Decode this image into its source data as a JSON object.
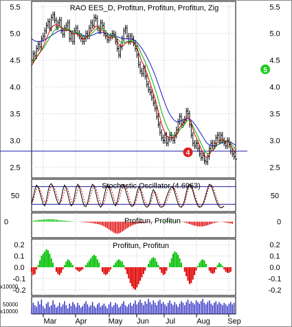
{
  "chart_data": {
    "type": "line",
    "panels": {
      "price": {
        "title": "RAO EES_D, Profitun, Profitun, Profitun, Zig",
        "ylim": [
          2.3,
          5.6
        ],
        "yticks": [
          "5.5",
          "5.0",
          "4.5",
          "4.0",
          "3.5",
          "3.0",
          "2.5"
        ],
        "hline": 2.8,
        "markers": [
          {
            "label": "4",
            "x": 95,
            "y": 2.78,
            "color": "#dd2222"
          },
          {
            "label": "5",
            "x": 142,
            "y": 4.33,
            "color": "#22cc22"
          }
        ],
        "close": [
          4.5,
          4.62,
          4.58,
          4.72,
          4.8,
          4.75,
          4.9,
          4.95,
          5.05,
          5.15,
          5.22,
          5.1,
          5.3,
          5.35,
          5.25,
          5.12,
          5.2,
          5.25,
          5.05,
          4.98,
          5.1,
          5.15,
          5.2,
          4.9,
          5.0,
          4.85,
          5.05,
          5.1,
          5.0,
          4.95,
          4.9,
          4.85,
          4.9,
          5.0,
          4.95,
          5.1,
          5.2,
          5.15,
          5.3,
          5.28,
          5.1,
          5.05,
          5.2,
          5.15,
          5.0,
          4.95,
          4.88,
          4.92,
          4.95,
          5.0,
          4.98,
          4.85,
          4.72,
          4.6,
          4.75,
          4.9,
          5.05,
          5.1,
          4.95,
          4.85,
          4.95,
          4.9,
          4.82,
          4.72,
          4.6,
          4.42,
          4.3,
          4.25,
          4.35,
          4.2,
          4.05,
          3.95,
          3.9,
          3.8,
          3.7,
          3.6,
          3.45,
          3.3,
          3.15,
          3.05,
          3.0,
          3.1,
          2.95,
          3.02,
          3.1,
          3.05,
          3.0,
          3.1,
          3.2,
          3.35,
          3.45,
          3.3,
          3.35,
          3.4,
          3.55,
          3.5,
          3.3,
          3.1,
          2.95,
          2.9,
          2.95,
          2.85,
          2.75,
          2.68,
          2.72,
          2.62,
          2.6,
          2.7,
          2.85,
          2.95,
          2.9,
          2.95,
          3.05,
          3.1,
          3.0,
          3.1,
          3.0,
          2.95,
          2.9,
          3.0,
          2.92,
          2.8,
          2.75,
          2.7,
          2.65
        ],
        "ma_red": [
          4.4,
          4.45,
          4.5,
          4.55,
          4.6,
          4.65,
          4.7,
          4.75,
          4.82,
          4.9,
          4.98,
          5.04,
          5.1,
          5.14,
          5.16,
          5.16,
          5.15,
          5.14,
          5.12,
          5.08,
          5.06,
          5.06,
          5.07,
          5.05,
          5.02,
          4.99,
          4.99,
          5.0,
          4.98,
          4.96,
          4.93,
          4.9,
          4.9,
          4.92,
          4.94,
          4.98,
          5.03,
          5.06,
          5.1,
          5.14,
          5.13,
          5.1,
          5.08,
          5.06,
          5.03,
          4.98,
          4.94,
          4.92,
          4.92,
          4.93,
          4.93,
          4.91,
          4.86,
          4.8,
          4.77,
          4.76,
          4.78,
          4.82,
          4.83,
          4.83,
          4.84,
          4.84,
          4.82,
          4.79,
          4.74,
          4.65,
          4.56,
          4.47,
          4.42,
          4.34,
          4.26,
          4.17,
          4.08,
          3.98,
          3.88,
          3.78,
          3.67,
          3.55,
          3.43,
          3.31,
          3.21,
          3.16,
          3.09,
          3.06,
          3.05,
          3.05,
          3.04,
          3.06,
          3.1,
          3.17,
          3.25,
          3.28,
          3.31,
          3.35,
          3.41,
          3.44,
          3.41,
          3.33,
          3.22,
          3.12,
          3.06,
          2.99,
          2.92,
          2.84,
          2.79,
          2.73,
          2.69,
          2.69,
          2.73,
          2.79,
          2.82,
          2.86,
          2.92,
          2.97,
          2.98,
          3.02,
          3.02,
          3.0,
          2.97,
          2.98,
          2.96,
          2.91,
          2.86,
          2.81,
          2.76
        ],
        "ma_green": [
          4.45,
          4.48,
          4.52,
          4.56,
          4.6,
          4.64,
          4.68,
          4.72,
          4.76,
          4.82,
          4.87,
          4.92,
          4.97,
          5.02,
          5.06,
          5.08,
          5.1,
          5.12,
          5.12,
          5.1,
          5.09,
          5.08,
          5.08,
          5.07,
          5.05,
          5.03,
          5.02,
          5.02,
          5.01,
          4.99,
          4.97,
          4.95,
          4.94,
          4.94,
          4.94,
          4.95,
          4.98,
          5.01,
          5.04,
          5.08,
          5.1,
          5.1,
          5.1,
          5.09,
          5.07,
          5.04,
          5.01,
          4.98,
          4.96,
          4.95,
          4.95,
          4.94,
          4.91,
          4.87,
          4.84,
          4.82,
          4.82,
          4.84,
          4.85,
          4.85,
          4.86,
          4.86,
          4.85,
          4.83,
          4.8,
          4.74,
          4.67,
          4.6,
          4.54,
          4.47,
          4.4,
          4.32,
          4.24,
          4.15,
          4.06,
          3.97,
          3.87,
          3.76,
          3.65,
          3.54,
          3.44,
          3.36,
          3.28,
          3.21,
          3.16,
          3.12,
          3.09,
          3.08,
          3.1,
          3.14,
          3.2,
          3.23,
          3.26,
          3.3,
          3.35,
          3.38,
          3.38,
          3.34,
          3.27,
          3.2,
          3.14,
          3.08,
          3.01,
          2.94,
          2.88,
          2.82,
          2.77,
          2.75,
          2.76,
          2.79,
          2.81,
          2.84,
          2.88,
          2.92,
          2.94,
          2.98,
          2.99,
          2.99,
          2.98,
          2.99,
          2.98,
          2.95,
          2.91,
          2.87,
          2.83
        ],
        "ma_blue": [
          4.9,
          4.88,
          4.86,
          4.85,
          4.85,
          4.85,
          4.86,
          4.87,
          4.88,
          4.9,
          4.92,
          4.94,
          4.96,
          4.98,
          5.0,
          5.02,
          5.04,
          5.05,
          5.06,
          5.06,
          5.06,
          5.06,
          5.06,
          5.05,
          5.04,
          5.03,
          5.02,
          5.01,
          5.0,
          4.99,
          4.98,
          4.97,
          4.96,
          4.95,
          4.95,
          4.95,
          4.96,
          4.97,
          4.98,
          5.0,
          5.01,
          5.02,
          5.02,
          5.02,
          5.01,
          5.0,
          4.99,
          4.98,
          4.97,
          4.96,
          4.96,
          4.95,
          4.94,
          4.93,
          4.92,
          4.91,
          4.9,
          4.9,
          4.9,
          4.9,
          4.9,
          4.89,
          4.88,
          4.86,
          4.84,
          4.8,
          4.76,
          4.72,
          4.67,
          4.62,
          4.56,
          4.5,
          4.44,
          4.37,
          4.3,
          4.22,
          4.14,
          4.05,
          3.96,
          3.87,
          3.78,
          3.7,
          3.62,
          3.55,
          3.49,
          3.44,
          3.4,
          3.37,
          3.35,
          3.35,
          3.36,
          3.37,
          3.38,
          3.39,
          3.4,
          3.41,
          3.4,
          3.38,
          3.35,
          3.31,
          3.27,
          3.22,
          3.17,
          3.12,
          3.07,
          3.02,
          2.97,
          2.94,
          2.92,
          2.91,
          2.9,
          2.9,
          2.91,
          2.92,
          2.93,
          2.95,
          2.96,
          2.97,
          2.97,
          2.98,
          2.98,
          2.97,
          2.95,
          2.93,
          2.91
        ]
      },
      "stochastic": {
        "title": "Stochastic Oscillator (4.6963)",
        "ylim": [
          0,
          100
        ],
        "yticks": [
          "50"
        ],
        "levels": [
          80,
          20
        ],
        "k": [
          20,
          45,
          70,
          85,
          78,
          60,
          40,
          20,
          15,
          35,
          65,
          85,
          90,
          80,
          60,
          40,
          25,
          20,
          40,
          70,
          85,
          75,
          55,
          30,
          15,
          20,
          45,
          75,
          88,
          80,
          55,
          30,
          15,
          12,
          25,
          50,
          75,
          88,
          82,
          60,
          35,
          18,
          10,
          20,
          45,
          70,
          85,
          80,
          60,
          40,
          22,
          15,
          28,
          55,
          80,
          88,
          85,
          70,
          50,
          30,
          18,
          12,
          18,
          35,
          60,
          78,
          72,
          50,
          28,
          15,
          10,
          15,
          30,
          55,
          70,
          60,
          40,
          22,
          12,
          10,
          15,
          28,
          45,
          60,
          72,
          80,
          75,
          60,
          40,
          22,
          12,
          10,
          18,
          35,
          60,
          80,
          88,
          82,
          65,
          45,
          28,
          15,
          10,
          12,
          20,
          35,
          55,
          75,
          88,
          85,
          70,
          52,
          35,
          20,
          12,
          8,
          10,
          15
        ],
        "d": [
          25,
          35,
          55,
          72,
          80,
          72,
          55,
          38,
          25,
          25,
          42,
          65,
          82,
          85,
          75,
          58,
          40,
          28,
          28,
          45,
          66,
          78,
          72,
          52,
          33,
          22,
          28,
          48,
          70,
          82,
          75,
          55,
          33,
          20,
          18,
          30,
          52,
          72,
          84,
          78,
          58,
          37,
          22,
          16,
          25,
          45,
          67,
          80,
          77,
          60,
          40,
          25,
          20,
          33,
          55,
          75,
          85,
          82,
          68,
          48,
          30,
          18,
          16,
          25,
          42,
          63,
          73,
          65,
          45,
          28,
          17,
          13,
          20,
          37,
          55,
          63,
          55,
          38,
          22,
          13,
          12,
          18,
          30,
          45,
          60,
          72,
          78,
          72,
          57,
          38,
          22,
          14,
          14,
          25,
          45,
          68,
          83,
          84,
          73,
          55,
          37,
          22,
          13,
          12,
          16,
          28,
          45,
          65,
          80,
          86,
          80,
          65,
          48,
          32,
          20,
          12,
          10,
          12
        ]
      },
      "osc1": {
        "title": "Profitun, Profitun",
        "ylim": [
          -1,
          0.5
        ],
        "yticks": [
          "0"
        ],
        "values": [
          0.05,
          0.06,
          0.08,
          0.1,
          0.12,
          0.13,
          0.14,
          0.15,
          0.16,
          0.16,
          0.17,
          0.17,
          0.17,
          0.16,
          0.15,
          0.14,
          0.12,
          0.1,
          0.09,
          0.08,
          0.07,
          0.06,
          0.05,
          0.04,
          0.03,
          0.02,
          0.01,
          0.01,
          0.0,
          -0.01,
          -0.02,
          -0.03,
          -0.04,
          -0.05,
          -0.06,
          -0.07,
          -0.08,
          -0.1,
          -0.12,
          -0.14,
          -0.16,
          -0.18,
          -0.22,
          -0.26,
          -0.32,
          -0.38,
          -0.45,
          -0.52,
          -0.6,
          -0.68,
          -0.75,
          -0.8,
          -0.82,
          -0.8,
          -0.75,
          -0.68,
          -0.6,
          -0.52,
          -0.45,
          -0.38,
          -0.32,
          -0.26,
          -0.22,
          -0.18,
          -0.15,
          -0.12,
          -0.1,
          -0.08,
          -0.06,
          -0.05,
          -0.04,
          -0.03,
          -0.03,
          -0.02,
          -0.02,
          -0.01,
          -0.01,
          0.0,
          0.01,
          0.02,
          0.03,
          0.04,
          0.05,
          0.05,
          0.06,
          0.06,
          0.05,
          0.04,
          0.03,
          0.02,
          0.01,
          -0.01,
          -0.03,
          -0.05,
          -0.08,
          -0.12,
          -0.16,
          -0.2,
          -0.24,
          -0.27,
          -0.3,
          -0.32,
          -0.33,
          -0.33,
          -0.32,
          -0.3,
          -0.27,
          -0.24,
          -0.2,
          -0.16,
          -0.12,
          -0.09,
          -0.06,
          -0.04,
          -0.02,
          -0.01,
          -0.02,
          -0.04,
          -0.06,
          -0.08,
          -0.1,
          -0.12,
          -0.14
        ]
      },
      "osc2": {
        "title": "Profitun, Profitun",
        "ylim": [
          -0.25,
          0.25
        ],
        "yticks": [
          "0.2",
          "0.1",
          "0.0",
          "-0.1",
          "-0.2"
        ],
        "multiplier": "x10000",
        "values": [
          -0.04,
          -0.07,
          -0.06,
          -0.02,
          0.02,
          0.06,
          0.1,
          0.12,
          0.14,
          0.16,
          0.15,
          0.12,
          0.08,
          0.04,
          0.0,
          -0.04,
          -0.06,
          -0.07,
          -0.05,
          -0.02,
          0.02,
          0.05,
          0.07,
          0.06,
          0.04,
          0.02,
          0.0,
          -0.02,
          -0.03,
          -0.04,
          -0.03,
          -0.02,
          0.0,
          0.02,
          0.04,
          0.06,
          0.08,
          0.1,
          0.11,
          0.1,
          0.07,
          0.04,
          0.0,
          -0.04,
          -0.06,
          -0.07,
          -0.06,
          -0.04,
          -0.02,
          0.0,
          0.02,
          0.04,
          0.06,
          0.07,
          0.06,
          0.05,
          0.02,
          -0.02,
          -0.06,
          -0.1,
          -0.14,
          -0.17,
          -0.19,
          -0.2,
          -0.18,
          -0.15,
          -0.12,
          -0.09,
          -0.06,
          -0.03,
          0.0,
          0.03,
          0.06,
          0.08,
          0.09,
          0.08,
          0.05,
          0.02,
          -0.02,
          -0.05,
          -0.07,
          -0.06,
          -0.03,
          0.0,
          0.04,
          0.08,
          0.12,
          0.14,
          0.13,
          0.11,
          0.08,
          0.04,
          0.0,
          -0.04,
          -0.08,
          -0.12,
          -0.15,
          -0.14,
          -0.11,
          -0.07,
          -0.03,
          0.01,
          0.04,
          0.06,
          0.07,
          0.06,
          0.03,
          0.0,
          -0.03,
          -0.05,
          -0.06,
          -0.05,
          -0.02,
          0.02,
          0.04,
          0.03,
          0.01,
          -0.02,
          -0.04,
          -0.05,
          -0.05,
          -0.04
        ]
      },
      "volume": {
        "multiplier": "x10000",
        "ytick_label": "50000",
        "values": [
          8,
          14,
          11,
          9,
          16,
          12,
          18,
          10,
          7,
          13,
          15,
          9,
          11,
          17,
          12,
          8,
          10,
          14,
          9,
          12,
          16,
          11,
          7,
          13,
          10,
          15,
          12,
          9,
          14,
          11,
          8,
          10,
          13,
          16,
          12,
          9,
          11,
          15,
          10,
          8,
          12,
          14,
          9,
          11,
          13,
          10,
          7,
          12,
          15,
          9,
          11,
          14,
          12,
          8,
          10,
          13,
          16,
          11,
          9,
          12,
          14,
          10,
          13,
          17,
          12,
          15,
          18,
          14,
          11,
          16,
          13,
          19,
          15,
          12,
          17,
          14,
          11,
          16,
          18,
          13,
          15,
          12,
          10,
          14,
          17,
          13,
          11,
          15,
          12,
          9,
          13,
          16,
          14,
          11,
          15,
          18,
          13,
          16,
          14,
          12,
          17,
          15,
          13,
          16,
          19,
          14,
          12,
          15,
          17,
          13,
          11,
          14,
          16,
          12,
          15,
          13,
          11,
          14,
          12,
          10,
          13,
          15,
          12,
          14
        ]
      }
    },
    "x_axis": {
      "labels": [
        "Mar",
        "Apr",
        "May",
        "Jun",
        "Jul",
        "Aug",
        "Sep"
      ]
    }
  }
}
